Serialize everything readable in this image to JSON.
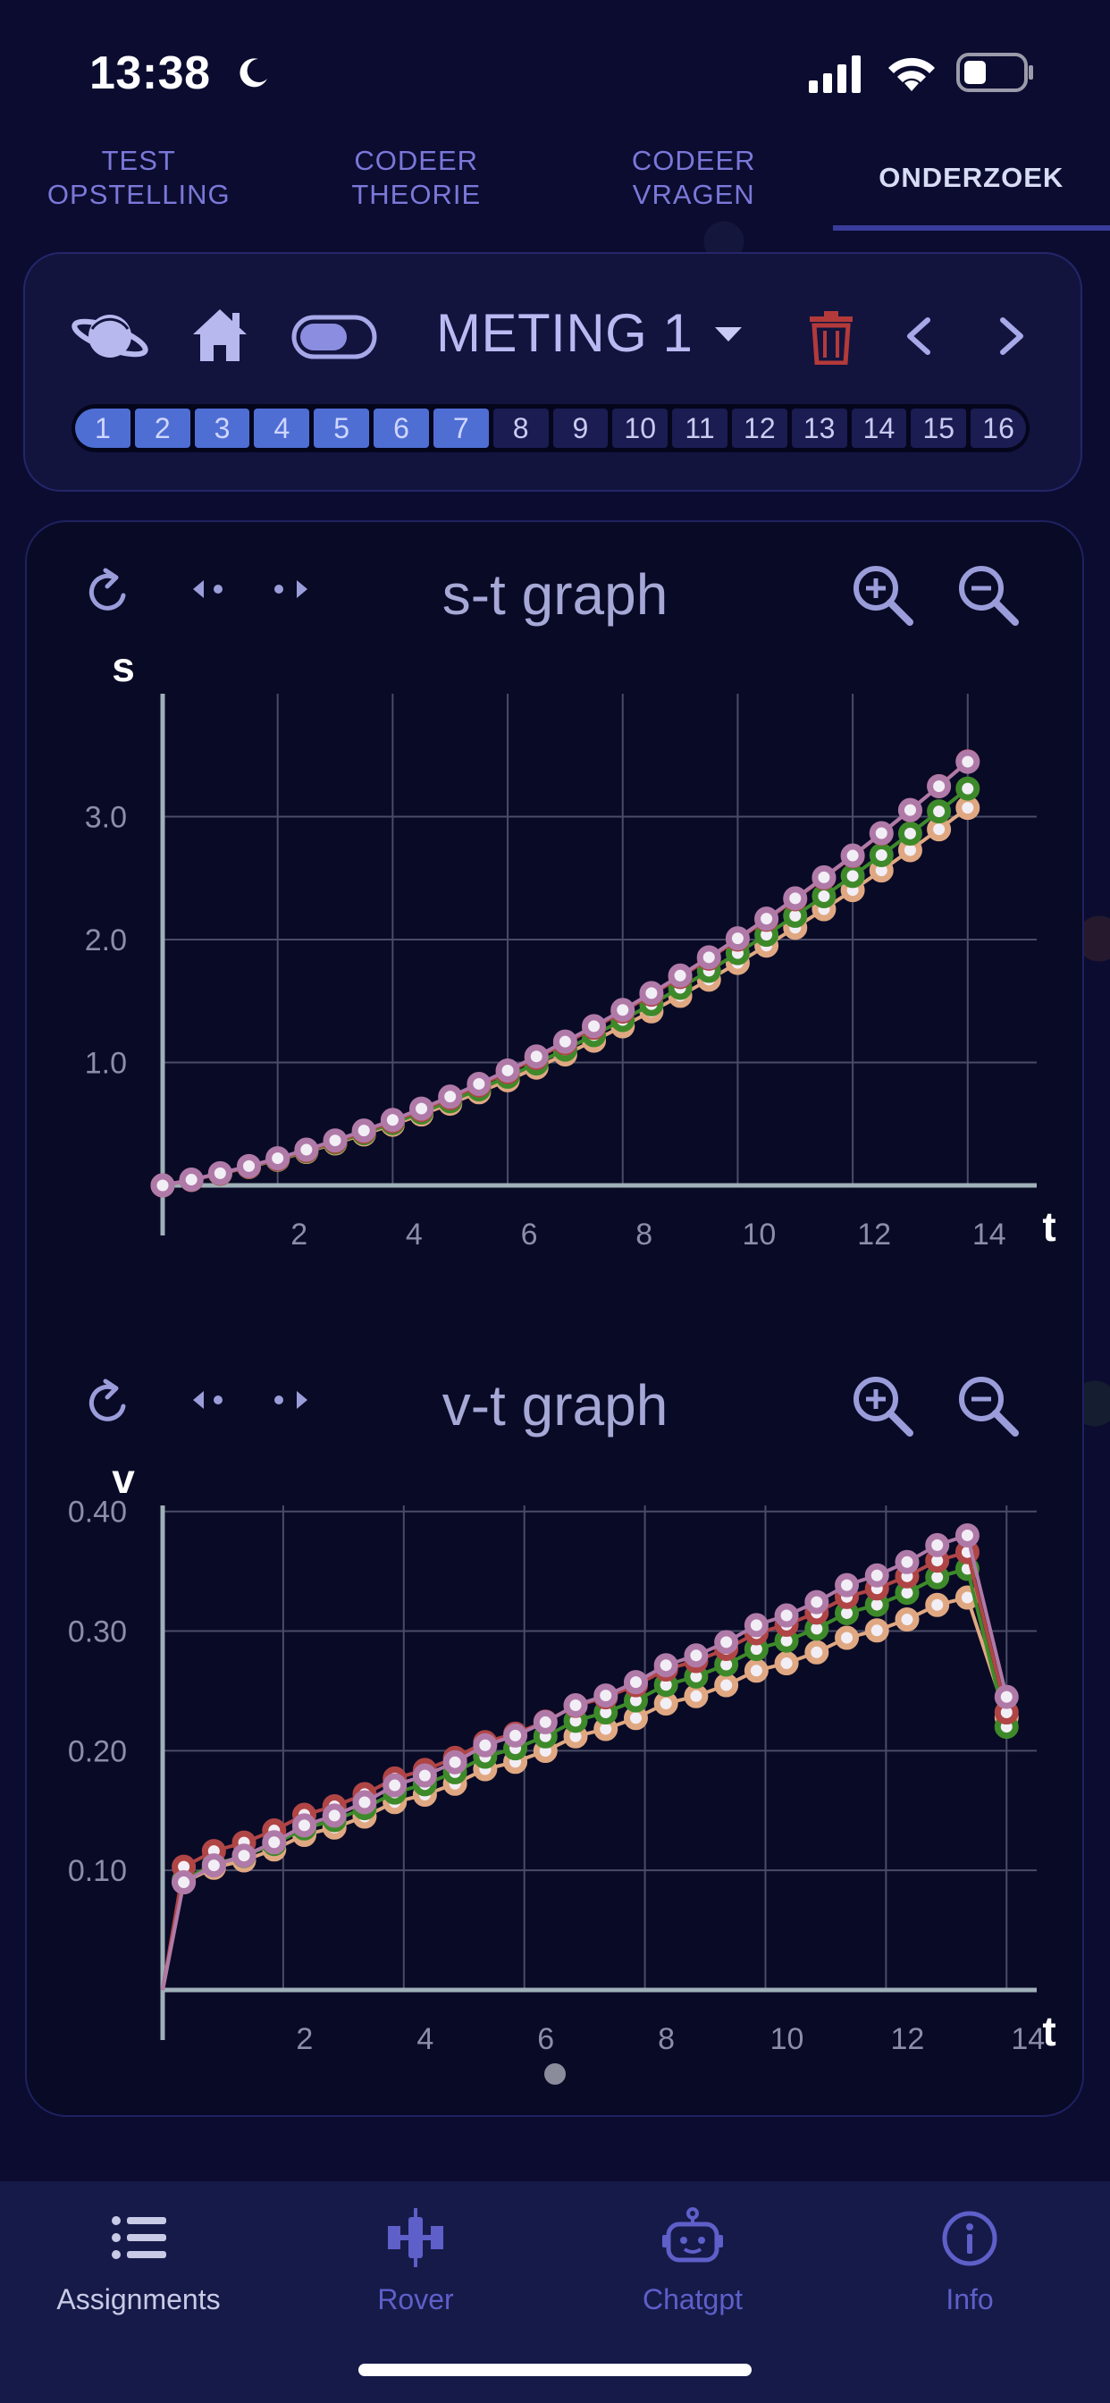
{
  "status_bar": {
    "time": "13:38"
  },
  "top_tabs": [
    {
      "label": "TEST\nOPSTELLING",
      "active": false
    },
    {
      "label": "CODEER\nTHEORIE",
      "active": false
    },
    {
      "label": "CODEER\nVRAGEN",
      "active": false
    },
    {
      "label": "ONDERZOEK",
      "active": true
    }
  ],
  "controls": {
    "measurement_label": "METING 1",
    "chips": [
      {
        "n": "1",
        "on": true
      },
      {
        "n": "2",
        "on": true
      },
      {
        "n": "3",
        "on": true
      },
      {
        "n": "4",
        "on": true
      },
      {
        "n": "5",
        "on": true
      },
      {
        "n": "6",
        "on": true
      },
      {
        "n": "7",
        "on": true
      },
      {
        "n": "8",
        "on": false
      },
      {
        "n": "9",
        "on": false
      },
      {
        "n": "10",
        "on": false
      },
      {
        "n": "11",
        "on": false
      },
      {
        "n": "12",
        "on": false
      },
      {
        "n": "13",
        "on": false
      },
      {
        "n": "14",
        "on": false
      },
      {
        "n": "15",
        "on": false
      },
      {
        "n": "16",
        "on": false
      }
    ]
  },
  "colors": {
    "red": "#b04545",
    "orange": "#e0a882",
    "green": "#3e8a2a",
    "purple": "#b07aa8",
    "grid": "#4a4c66",
    "axis": "#9fb0b8",
    "tick": "#8c8ea8",
    "icon": "#9b9ddb",
    "delete": "#b43a3a"
  },
  "st_graph": {
    "title": "s-t graph"
  },
  "vt_graph": {
    "title": "v-t graph"
  },
  "chart_data": [
    {
      "type": "line",
      "title": "s-t graph",
      "xlabel": "t",
      "ylabel": "s",
      "xlim": [
        0,
        15.2
      ],
      "ylim": [
        0,
        4.0
      ],
      "x_ticks": [
        "2",
        "4",
        "6",
        "8",
        "10",
        "12",
        "14"
      ],
      "x_tick_values": [
        2,
        4,
        6,
        8,
        10,
        12,
        14
      ],
      "y_ticks": [
        "1.0",
        "2.0",
        "3.0"
      ],
      "y_tick_values": [
        1.0,
        2.0,
        3.0
      ],
      "grid": true,
      "model": "s = a*t^2 + b*t sampled every 0.5 s from 0 to 14",
      "series": [
        {
          "color_key": "orange",
          "a": 0.0096,
          "b": 0.085
        },
        {
          "color_key": "green",
          "a": 0.0104,
          "b": 0.085
        },
        {
          "color_key": "red",
          "a": 0.0116,
          "b": 0.084
        },
        {
          "color_key": "purple",
          "a": 0.0113,
          "b": 0.088
        }
      ]
    },
    {
      "type": "line",
      "title": "v-t graph",
      "xlabel": "t",
      "ylabel": "v",
      "xlim": [
        0,
        14.5
      ],
      "ylim": [
        0,
        0.405
      ],
      "x_ticks": [
        "2",
        "4",
        "6",
        "8",
        "10",
        "12",
        "14"
      ],
      "x_tick_values": [
        2,
        4,
        6,
        8,
        10,
        12,
        14
      ],
      "y_ticks": [
        "0.10",
        "0.20",
        "0.30",
        "0.40"
      ],
      "y_tick_values": [
        0.1,
        0.2,
        0.3,
        0.4
      ],
      "grid": true,
      "series": [
        {
          "color_key": "orange",
          "start": 0.09,
          "end": 0.328,
          "final": 0.228
        },
        {
          "color_key": "green",
          "start": 0.092,
          "end": 0.352,
          "final": 0.22
        },
        {
          "color_key": "red",
          "start": 0.103,
          "end": 0.366,
          "final": 0.232
        },
        {
          "color_key": "purple",
          "start": 0.09,
          "end": 0.38,
          "final": 0.245
        }
      ]
    }
  ],
  "bottom_nav": [
    {
      "label": "Assignments",
      "icon": "list-icon",
      "active": true
    },
    {
      "label": "Rover",
      "icon": "satellite-icon",
      "active": false
    },
    {
      "label": "Chatgpt",
      "icon": "robot-icon",
      "active": false
    },
    {
      "label": "Info",
      "icon": "info-icon",
      "active": false
    }
  ]
}
